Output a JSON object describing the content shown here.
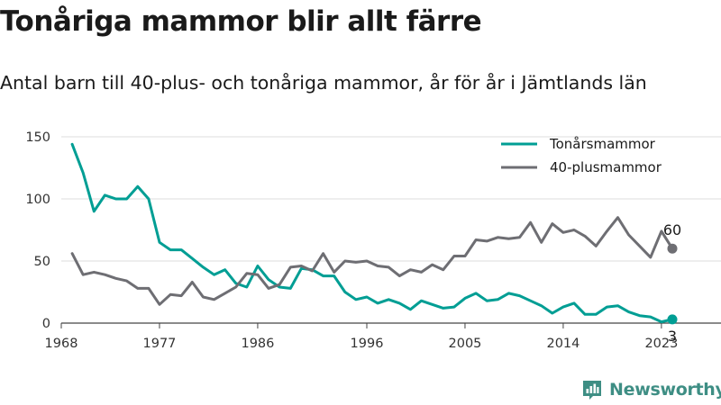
{
  "title": "Tonåriga mammor blir allt färre",
  "subtitle": "Antal barn till 40-plus- och tonåriga mammor, år för år i Jämtlands län",
  "brand": {
    "name": "Newsworthy",
    "color": "#3e8e84",
    "icon": "bar-chart-logo-icon"
  },
  "chart_data": {
    "type": "line",
    "x": [
      1969,
      1970,
      1971,
      1972,
      1973,
      1974,
      1975,
      1976,
      1977,
      1978,
      1979,
      1980,
      1981,
      1982,
      1983,
      1984,
      1985,
      1986,
      1987,
      1988,
      1989,
      1990,
      1991,
      1992,
      1993,
      1994,
      1995,
      1996,
      1997,
      1998,
      1999,
      2000,
      2001,
      2002,
      2003,
      2004,
      2005,
      2006,
      2007,
      2008,
      2009,
      2010,
      2011,
      2012,
      2013,
      2014,
      2015,
      2016,
      2017,
      2018,
      2019,
      2020,
      2021,
      2022,
      2023,
      2024
    ],
    "series": [
      {
        "name": "Tonårsmammor",
        "color": "#009e94",
        "values": [
          144,
          121,
          90,
          103,
          100,
          100,
          110,
          100,
          65,
          59,
          59,
          52,
          45,
          39,
          43,
          32,
          29,
          46,
          35,
          29,
          28,
          44,
          43,
          38,
          38,
          25,
          19,
          21,
          16,
          19,
          16,
          11,
          18,
          15,
          12,
          13,
          20,
          24,
          18,
          19,
          24,
          22,
          18,
          14,
          8,
          13,
          16,
          7,
          7,
          13,
          14,
          9,
          6,
          5,
          1,
          3
        ],
        "end_label": "3"
      },
      {
        "name": "40-plusmammor",
        "color": "#6e6e73",
        "values": [
          56,
          39,
          41,
          39,
          36,
          34,
          28,
          28,
          15,
          23,
          22,
          33,
          21,
          19,
          24,
          29,
          40,
          39,
          28,
          31,
          45,
          46,
          42,
          56,
          41,
          50,
          49,
          50,
          46,
          45,
          38,
          43,
          41,
          47,
          43,
          54,
          54,
          67,
          66,
          69,
          68,
          69,
          81,
          65,
          80,
          73,
          75,
          70,
          62,
          74,
          85,
          71,
          62,
          53,
          74,
          60
        ],
        "end_label": "60"
      }
    ],
    "xticks": [
      1968,
      1977,
      1986,
      1996,
      2005,
      2014,
      2023
    ],
    "yticks": [
      0,
      50,
      100,
      150
    ],
    "xlim": [
      1968,
      2024
    ],
    "ylim": [
      0,
      150
    ],
    "grid": true,
    "legend": "top-right"
  }
}
